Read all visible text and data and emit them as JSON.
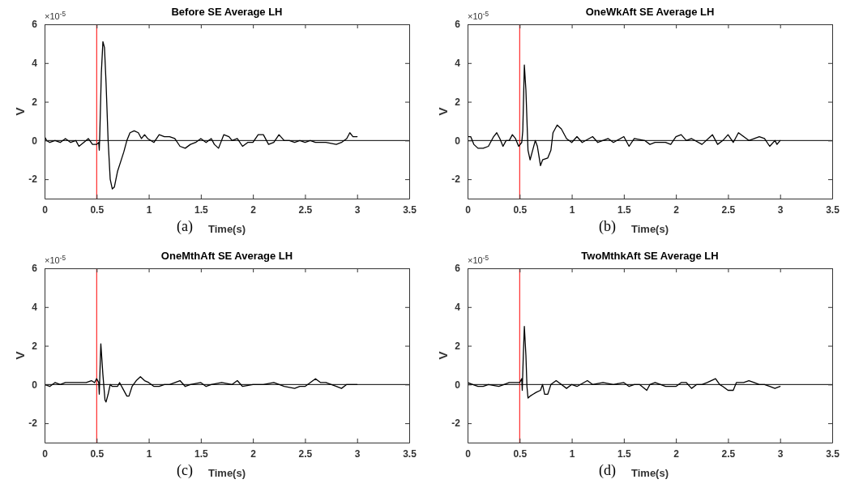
{
  "chart_data": [
    {
      "type": "line",
      "title": "Before SE Average LH",
      "xlabel": "Time(s)",
      "ylabel": "V",
      "annotations": [
        "×10$^{-5}$",
        "(a)"
      ],
      "xlim": [
        0,
        3.5
      ],
      "ylim": [
        -3,
        6
      ],
      "xticks": [
        0,
        0.5,
        1,
        1.5,
        2,
        2.5,
        3,
        3.5
      ],
      "yticks": [
        -2,
        0,
        2,
        4,
        6
      ],
      "grid": false,
      "ref_lines": [
        {
          "axis": "y",
          "value": 0,
          "color": "#000000"
        },
        {
          "axis": "x",
          "value": 0.5,
          "color": "#ff0000"
        }
      ],
      "series": [
        {
          "color": "#000000",
          "x": [
            0,
            0.02,
            0.05,
            0.1,
            0.15,
            0.2,
            0.25,
            0.3,
            0.33,
            0.4,
            0.42,
            0.46,
            0.5,
            0.52,
            0.525,
            0.53,
            0.545,
            0.56,
            0.575,
            0.59,
            0.61,
            0.63,
            0.65,
            0.67,
            0.7,
            0.73,
            0.76,
            0.79,
            0.82,
            0.86,
            0.9,
            0.93,
            0.96,
            0.99,
            1.05,
            1.1,
            1.15,
            1.2,
            1.25,
            1.3,
            1.35,
            1.4,
            1.45,
            1.5,
            1.55,
            1.6,
            1.63,
            1.67,
            1.72,
            1.77,
            1.8,
            1.85,
            1.9,
            1.95,
            2.0,
            2.05,
            2.1,
            2.15,
            2.2,
            2.25,
            2.3,
            2.35,
            2.4,
            2.45,
            2.5,
            2.55,
            2.6,
            2.7,
            2.8,
            2.85,
            2.9,
            2.93,
            2.96,
            3.0
          ],
          "values": [
            0.2,
            0,
            -0.1,
            0,
            -0.1,
            0.1,
            -0.1,
            0,
            -0.3,
            0,
            0.1,
            -0.2,
            -0.2,
            -0.1,
            -0.5,
            0.3,
            3.5,
            5.1,
            4.8,
            3,
            0,
            -2,
            -2.5,
            -2.4,
            -1.6,
            -1.1,
            -0.6,
            0,
            0.4,
            0.5,
            0.4,
            0.1,
            0.3,
            0.1,
            -0.1,
            0.3,
            0.2,
            0.2,
            0.1,
            -0.3,
            -0.4,
            -0.2,
            -0.1,
            0.1,
            -0.1,
            0.1,
            -0.2,
            -0.4,
            0.3,
            0.2,
            0,
            0.1,
            -0.3,
            -0.1,
            -0.1,
            0.3,
            0.3,
            -0.2,
            -0.1,
            0.3,
            0,
            0,
            -0.1,
            0,
            -0.1,
            0,
            -0.1,
            -0.1,
            -0.2,
            -0.1,
            0.1,
            0.4,
            0.2,
            0.2
          ]
        }
      ]
    },
    {
      "type": "line",
      "title": "OneWkAft SE Average LH",
      "xlabel": "Time(s)",
      "ylabel": "V",
      "annotations": [
        "×10$^{-5}$",
        "(b)"
      ],
      "xlim": [
        0,
        3.5
      ],
      "ylim": [
        -3,
        6
      ],
      "xticks": [
        0,
        0.5,
        1,
        1.5,
        2,
        2.5,
        3,
        3.5
      ],
      "yticks": [
        -2,
        0,
        2,
        4,
        6
      ],
      "grid": false,
      "ref_lines": [
        {
          "axis": "y",
          "value": 0,
          "color": "#000000"
        },
        {
          "axis": "x",
          "value": 0.5,
          "color": "#ff0000"
        }
      ],
      "series": [
        {
          "color": "#000000",
          "x": [
            0,
            0.03,
            0.06,
            0.1,
            0.15,
            0.2,
            0.25,
            0.28,
            0.31,
            0.34,
            0.37,
            0.4,
            0.43,
            0.46,
            0.49,
            0.52,
            0.53,
            0.545,
            0.56,
            0.58,
            0.6,
            0.62,
            0.65,
            0.67,
            0.7,
            0.72,
            0.77,
            0.8,
            0.82,
            0.86,
            0.9,
            0.95,
            1.0,
            1.05,
            1.1,
            1.2,
            1.25,
            1.35,
            1.4,
            1.5,
            1.55,
            1.6,
            1.7,
            1.75,
            1.8,
            1.9,
            1.95,
            2.0,
            2.05,
            2.1,
            2.15,
            2.25,
            2.35,
            2.4,
            2.45,
            2.5,
            2.55,
            2.6,
            2.65,
            2.7,
            2.8,
            2.85,
            2.9,
            2.95,
            2.97,
            3.0
          ],
          "values": [
            0.2,
            0.2,
            -0.2,
            -0.4,
            -0.4,
            -0.3,
            0.2,
            0.4,
            0.1,
            -0.3,
            0,
            0,
            0.3,
            0.1,
            -0.3,
            -0.1,
            0.5,
            3.9,
            2.6,
            -0.5,
            -1,
            -0.6,
            0,
            -0.3,
            -1.3,
            -1,
            -0.9,
            -0.5,
            0.4,
            0.8,
            0.6,
            0.1,
            -0.1,
            0.2,
            -0.1,
            0.2,
            -0.1,
            0.1,
            -0.1,
            0.2,
            -0.3,
            0.1,
            0,
            -0.2,
            -0.1,
            -0.1,
            -0.2,
            0.2,
            0.3,
            0,
            0.1,
            -0.2,
            0.3,
            -0.2,
            0,
            0.3,
            -0.1,
            0.4,
            0.2,
            0,
            0.2,
            0.1,
            -0.3,
            0,
            -0.2,
            0
          ]
        }
      ]
    },
    {
      "type": "line",
      "title": "OneMthAft SE Average LH",
      "xlabel": "Time(s)",
      "ylabel": "V",
      "annotations": [
        "×10$^{-5}$",
        "(c)"
      ],
      "xlim": [
        0,
        3.5
      ],
      "ylim": [
        -3,
        6
      ],
      "xticks": [
        0,
        0.5,
        1,
        1.5,
        2,
        2.5,
        3,
        3.5
      ],
      "yticks": [
        -2,
        0,
        2,
        4,
        6
      ],
      "grid": false,
      "ref_lines": [
        {
          "axis": "y",
          "value": 0,
          "color": "#000000"
        },
        {
          "axis": "x",
          "value": 0.5,
          "color": "#ff0000"
        }
      ],
      "series": [
        {
          "color": "#000000",
          "x": [
            0,
            0.05,
            0.1,
            0.15,
            0.2,
            0.3,
            0.4,
            0.45,
            0.48,
            0.5,
            0.52,
            0.525,
            0.54,
            0.56,
            0.58,
            0.59,
            0.61,
            0.63,
            0.65,
            0.7,
            0.72,
            0.75,
            0.79,
            0.81,
            0.84,
            0.88,
            0.92,
            0.96,
            1.0,
            1.05,
            1.1,
            1.15,
            1.2,
            1.3,
            1.35,
            1.4,
            1.5,
            1.55,
            1.6,
            1.7,
            1.8,
            1.85,
            1.9,
            2.0,
            2.1,
            2.2,
            2.3,
            2.4,
            2.45,
            2.5,
            2.55,
            2.6,
            2.65,
            2.7,
            2.8,
            2.85,
            2.9,
            3.0
          ],
          "values": [
            0,
            -0.1,
            0.1,
            0,
            0.1,
            0.1,
            0.1,
            0.2,
            0.1,
            0.3,
            0.1,
            -0.5,
            2.1,
            0.5,
            -0.8,
            -0.9,
            -0.5,
            0,
            -0.1,
            -0.1,
            0.1,
            -0.2,
            -0.6,
            -0.6,
            -0.1,
            0.2,
            0.4,
            0.2,
            0.1,
            -0.1,
            -0.1,
            0,
            0,
            0.2,
            -0.1,
            0,
            0.1,
            -0.1,
            0,
            0.1,
            0,
            0.2,
            -0.1,
            0,
            0,
            0.1,
            -0.1,
            -0.2,
            -0.1,
            -0.1,
            0.1,
            0.3,
            0.1,
            0.1,
            -0.1,
            -0.2,
            0,
            0
          ]
        }
      ]
    },
    {
      "type": "line",
      "title": "TwoMthkAft SE Average LH",
      "xlabel": "Time(s)",
      "ylabel": "V",
      "annotations": [
        "×10$^{-5}$",
        "(d)"
      ],
      "xlim": [
        0,
        3.5
      ],
      "ylim": [
        -3,
        6
      ],
      "xticks": [
        0,
        0.5,
        1,
        1.5,
        2,
        2.5,
        3,
        3.5
      ],
      "yticks": [
        -2,
        0,
        2,
        4,
        6
      ],
      "grid": false,
      "ref_lines": [
        {
          "axis": "y",
          "value": 0,
          "color": "#000000"
        },
        {
          "axis": "x",
          "value": 0.5,
          "color": "#ff0000"
        }
      ],
      "series": [
        {
          "color": "#000000",
          "x": [
            0,
            0.05,
            0.1,
            0.15,
            0.2,
            0.3,
            0.35,
            0.4,
            0.45,
            0.48,
            0.5,
            0.52,
            0.525,
            0.535,
            0.545,
            0.56,
            0.57,
            0.58,
            0.6,
            0.63,
            0.66,
            0.7,
            0.72,
            0.74,
            0.77,
            0.8,
            0.85,
            0.9,
            0.95,
            1.0,
            1.05,
            1.15,
            1.2,
            1.3,
            1.4,
            1.5,
            1.55,
            1.6,
            1.65,
            1.72,
            1.75,
            1.8,
            1.9,
            1.95,
            2.0,
            2.05,
            2.1,
            2.15,
            2.2,
            2.25,
            2.3,
            2.38,
            2.42,
            2.45,
            2.5,
            2.55,
            2.58,
            2.65,
            2.7,
            2.75,
            2.8,
            2.85,
            2.9,
            2.95,
            3.0
          ],
          "values": [
            0.1,
            0,
            -0.1,
            -0.1,
            0,
            -0.1,
            0,
            0.1,
            0.1,
            0.1,
            0.1,
            0.3,
            -0.3,
            1.5,
            3,
            1.5,
            -0.1,
            -0.7,
            -0.6,
            -0.5,
            -0.4,
            -0.3,
            0,
            -0.5,
            -0.5,
            0,
            0.2,
            0,
            -0.2,
            0,
            -0.1,
            0.2,
            0,
            0.1,
            0,
            0.1,
            -0.1,
            0,
            0,
            -0.3,
            0,
            0.1,
            -0.1,
            -0.1,
            -0.1,
            0.1,
            0.1,
            -0.2,
            0,
            0,
            0.1,
            0.3,
            0,
            -0.1,
            -0.3,
            -0.3,
            0.1,
            0.1,
            0.2,
            0.1,
            0,
            0,
            -0.1,
            -0.2,
            -0.1
          ]
        }
      ]
    }
  ]
}
